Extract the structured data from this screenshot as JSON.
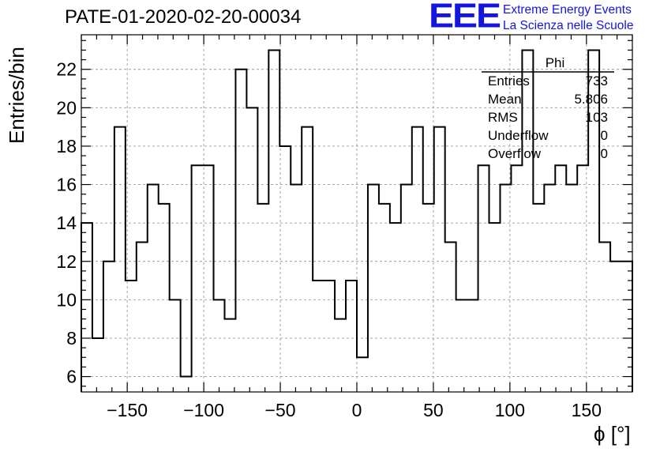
{
  "title": "PATE-01-2020-02-20-00034",
  "branding": {
    "logo_text": "EEE",
    "line1": "Extreme Energy Events",
    "line2": "La Scienza nelle Scuole",
    "color": "#1515e0"
  },
  "stats_box": {
    "name": "Phi",
    "rows": [
      {
        "label": "Entries",
        "value": "733"
      },
      {
        "label": "Mean",
        "value": "5.806"
      },
      {
        "label": "RMS",
        "value": "103"
      },
      {
        "label": "Underflow",
        "value": "0"
      },
      {
        "label": "Overflow",
        "value": "0"
      }
    ]
  },
  "chart_data": {
    "type": "bar",
    "style": "step-histogram",
    "title": "PATE-01-2020-02-20-00034",
    "xlabel": "ϕ [°]",
    "ylabel": "Entries/bin",
    "xlim": [
      -180,
      180
    ],
    "ylim": [
      5.2,
      23.8
    ],
    "xticks": [
      -150,
      -100,
      -50,
      0,
      50,
      100,
      150
    ],
    "yticks": [
      6,
      8,
      10,
      12,
      14,
      16,
      18,
      20,
      22
    ],
    "grid": true,
    "bin_width": 7.2,
    "bin_edges_start": -180,
    "values": [
      14,
      8,
      12,
      19,
      11,
      13,
      16,
      15,
      10,
      6,
      17,
      17,
      10,
      9,
      22,
      20,
      15,
      23,
      18,
      16,
      19,
      11,
      11,
      9,
      11,
      7,
      16,
      15,
      14,
      16,
      19,
      15,
      19,
      13,
      10,
      10,
      17,
      14,
      16,
      17,
      23,
      15,
      16,
      17,
      16,
      17,
      23,
      13,
      12,
      12
    ],
    "line_color": "#000000"
  }
}
